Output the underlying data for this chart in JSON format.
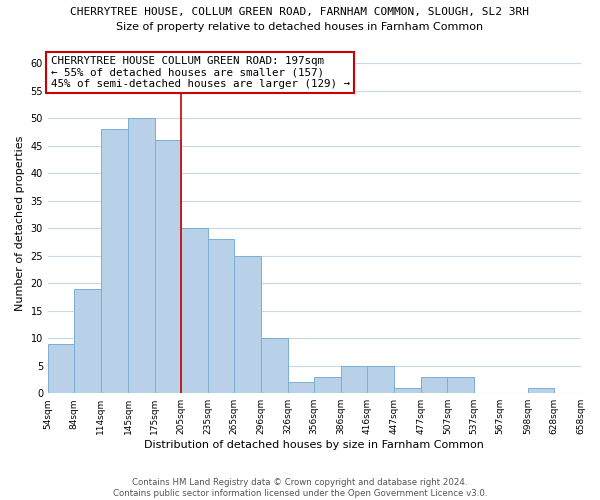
{
  "title_main": "CHERRYTREE HOUSE, COLLUM GREEN ROAD, FARNHAM COMMON, SLOUGH, SL2 3RH",
  "title_sub": "Size of property relative to detached houses in Farnham Common",
  "xlabel": "Distribution of detached houses by size in Farnham Common",
  "ylabel": "Number of detached properties",
  "bin_edges": [
    54,
    84,
    114,
    145,
    175,
    205,
    235,
    265,
    296,
    326,
    356,
    386,
    416,
    447,
    477,
    507,
    537,
    567,
    598,
    628,
    658
  ],
  "bin_labels": [
    "54sqm",
    "84sqm",
    "114sqm",
    "145sqm",
    "175sqm",
    "205sqm",
    "235sqm",
    "265sqm",
    "296sqm",
    "326sqm",
    "356sqm",
    "386sqm",
    "416sqm",
    "447sqm",
    "477sqm",
    "507sqm",
    "537sqm",
    "567sqm",
    "598sqm",
    "628sqm",
    "658sqm"
  ],
  "counts": [
    9,
    19,
    48,
    50,
    46,
    30,
    28,
    25,
    10,
    2,
    3,
    5,
    5,
    1,
    3,
    3,
    0,
    0,
    1,
    0
  ],
  "bar_color": "#b8d0e8",
  "bar_edge_color": "#7aafd4",
  "vline_x": 205,
  "vline_color": "#cc0000",
  "ylim": [
    0,
    62
  ],
  "yticks": [
    0,
    5,
    10,
    15,
    20,
    25,
    30,
    35,
    40,
    45,
    50,
    55,
    60
  ],
  "annotation_line1": "CHERRYTREE HOUSE COLLUM GREEN ROAD: 197sqm",
  "annotation_line2": "← 55% of detached houses are smaller (157)",
  "annotation_line3": "45% of semi-detached houses are larger (129) →",
  "footer_text": "Contains HM Land Registry data © Crown copyright and database right 2024.\nContains public sector information licensed under the Open Government Licence v3.0.",
  "background_color": "#ffffff",
  "grid_color": "#c8d8e8"
}
